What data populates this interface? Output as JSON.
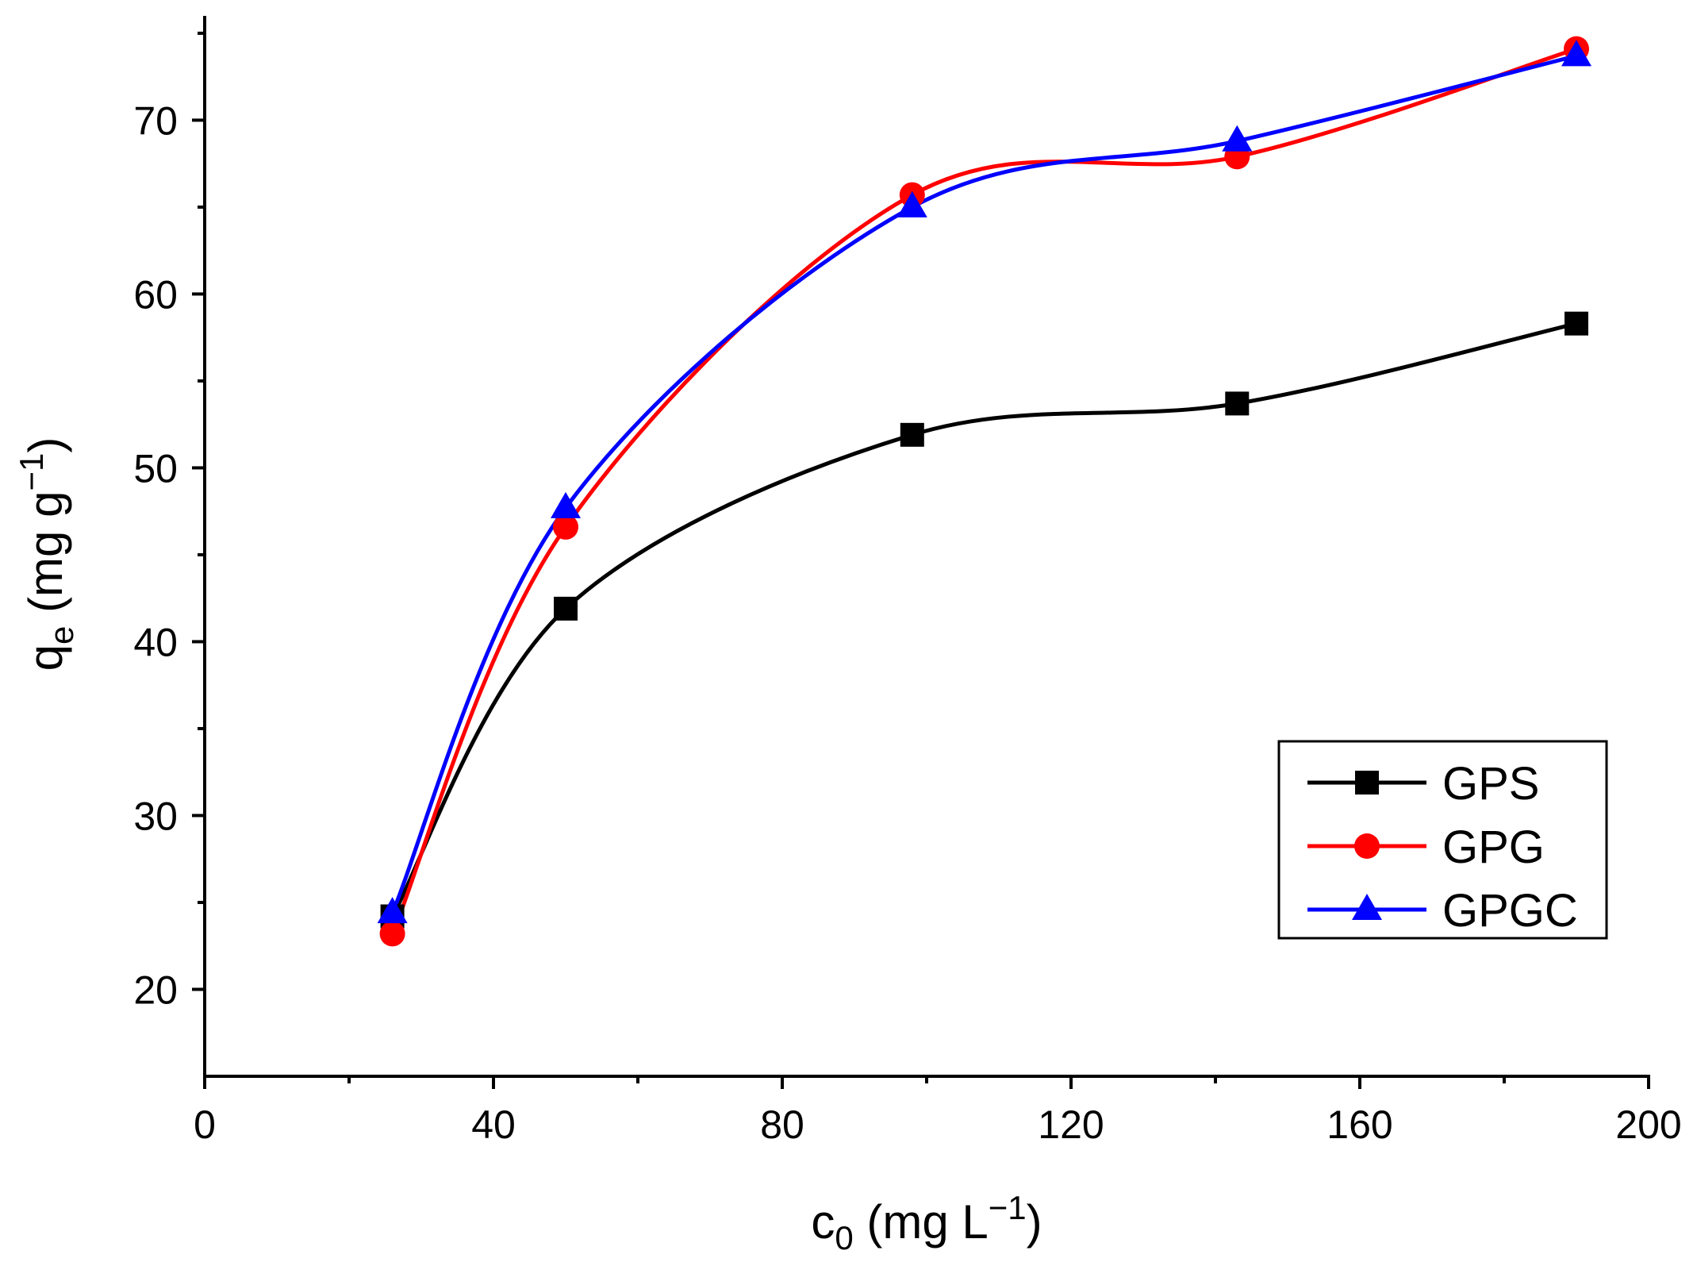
{
  "chart_data": {
    "type": "line",
    "title": "",
    "x": [
      26,
      50,
      98,
      143,
      190
    ],
    "series": [
      {
        "name": "GPS",
        "marker": "square",
        "color": "#000000",
        "values": [
          24.2,
          41.9,
          51.9,
          53.7,
          58.3
        ]
      },
      {
        "name": "GPG",
        "marker": "circle",
        "color": "#ff0000",
        "values": [
          23.2,
          46.6,
          65.7,
          67.9,
          74.1
        ]
      },
      {
        "name": "GPGC",
        "marker": "triangle",
        "color": "#0000ff",
        "values": [
          24.4,
          47.7,
          65.0,
          68.8,
          73.7
        ]
      }
    ],
    "xlim": [
      0,
      200
    ],
    "ylim": [
      15,
      76
    ],
    "xticks": [
      0,
      40,
      80,
      120,
      160,
      200
    ],
    "yticks": [
      20,
      30,
      40,
      50,
      60,
      70
    ],
    "xlabel": {
      "main": "c",
      "sub": "0",
      "rest": " (mg L",
      "sup": "−1",
      "end": ")"
    },
    "ylabel": {
      "main": "q",
      "sub": "e",
      "rest": " (mg g",
      "sup": "−1",
      "end": ")"
    },
    "legend_position": "bottom-right",
    "grid": false
  }
}
